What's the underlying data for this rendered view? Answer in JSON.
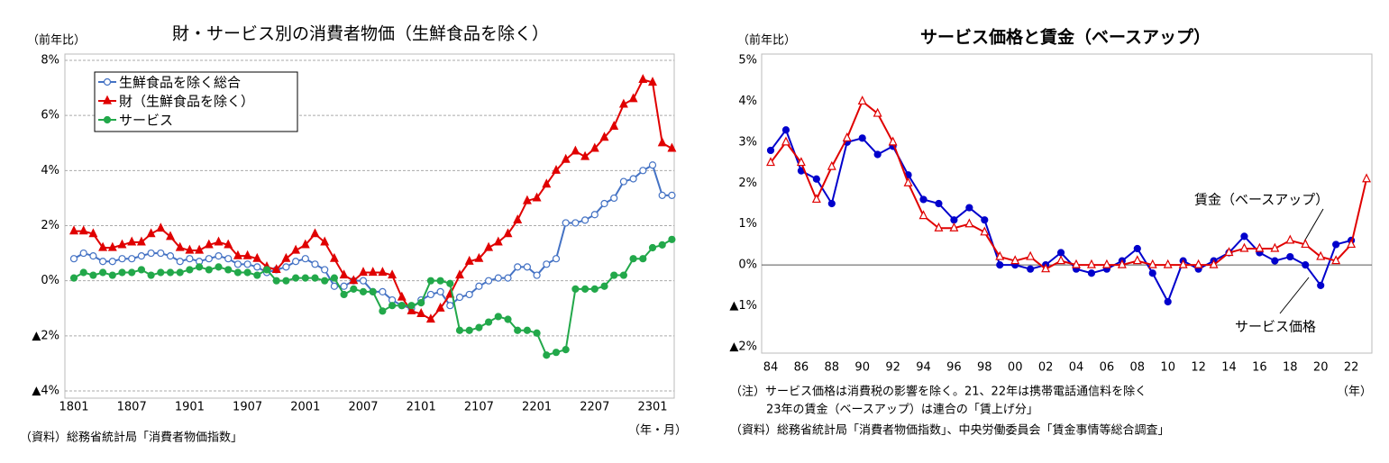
{
  "chart_data": [
    {
      "type": "line",
      "title": "財・サービス別の消費者物価（生鮮食品を除く）",
      "y_unit_label": "（前年比）",
      "x_unit_label": "（年・月）",
      "source": "（資料）総務省統計局「消費者物価指数」",
      "categories": [
        "1801",
        null,
        null,
        null,
        null,
        null,
        "1807",
        null,
        null,
        null,
        null,
        null,
        "1901",
        null,
        null,
        null,
        null,
        null,
        "1907",
        null,
        null,
        null,
        null,
        null,
        "2001",
        null,
        null,
        null,
        null,
        null,
        "2007",
        null,
        null,
        null,
        null,
        null,
        "2101",
        null,
        null,
        null,
        null,
        null,
        "2107",
        null,
        null,
        null,
        null,
        null,
        "2201",
        null,
        null,
        null,
        null,
        null,
        "2207",
        null,
        null,
        null,
        null,
        null,
        "2301",
        null,
        null
      ],
      "series": [
        {
          "name": "生鮮食品を除く総合",
          "color": "#4472c4",
          "marker": "circle-open",
          "values": [
            0.8,
            1.0,
            0.9,
            0.7,
            0.7,
            0.8,
            0.8,
            0.9,
            1.0,
            1.0,
            0.9,
            0.7,
            0.8,
            0.7,
            0.8,
            0.9,
            0.8,
            0.6,
            0.6,
            0.5,
            0.3,
            0.4,
            0.5,
            0.7,
            0.8,
            0.6,
            0.4,
            -0.2,
            -0.2,
            0.0,
            0.0,
            -0.4,
            -0.4,
            -0.7,
            -0.9,
            -1.0,
            -0.7,
            -0.5,
            -0.4,
            -0.9,
            -0.6,
            -0.5,
            -0.2,
            0.0,
            0.1,
            0.1,
            0.5,
            0.5,
            0.2,
            0.6,
            0.8,
            2.1,
            2.1,
            2.2,
            2.4,
            2.8,
            3.0,
            3.6,
            3.7,
            4.0,
            4.2,
            3.1,
            3.1
          ]
        },
        {
          "name": "財（生鮮食品を除く）",
          "color": "#e00000",
          "marker": "triangle",
          "values": [
            1.8,
            1.8,
            1.7,
            1.2,
            1.2,
            1.3,
            1.4,
            1.4,
            1.7,
            1.9,
            1.6,
            1.2,
            1.1,
            1.1,
            1.3,
            1.4,
            1.3,
            0.9,
            0.9,
            0.8,
            0.5,
            0.4,
            0.8,
            1.1,
            1.3,
            1.7,
            1.4,
            0.8,
            0.2,
            0.0,
            0.3,
            0.3,
            0.3,
            0.2,
            -0.6,
            -1.1,
            -1.2,
            -1.4,
            -1.0,
            -0.5,
            0.2,
            0.7,
            0.8,
            1.2,
            1.4,
            1.7,
            2.2,
            2.9,
            3.0,
            3.5,
            4.0,
            4.4,
            4.7,
            4.5,
            4.8,
            5.2,
            5.6,
            6.4,
            6.6,
            7.3,
            7.2,
            5.0,
            4.8
          ]
        },
        {
          "name": "サービス",
          "color": "#22a84a",
          "marker": "circle",
          "values": [
            0.1,
            0.3,
            0.2,
            0.3,
            0.2,
            0.3,
            0.3,
            0.4,
            0.2,
            0.3,
            0.3,
            0.3,
            0.4,
            0.5,
            0.4,
            0.5,
            0.4,
            0.3,
            0.3,
            0.2,
            0.4,
            0.0,
            0.0,
            0.1,
            0.1,
            0.1,
            0.0,
            0.1,
            -0.5,
            -0.3,
            -0.4,
            -0.4,
            -1.1,
            -0.9,
            -0.9,
            -0.9,
            -0.8,
            0.0,
            0.0,
            -0.1,
            -1.8,
            -1.8,
            -1.7,
            -1.5,
            -1.3,
            -1.4,
            -1.8,
            -1.8,
            -1.9,
            -2.7,
            -2.6,
            -2.5,
            -0.3,
            -0.3,
            -0.3,
            -0.2,
            0.2,
            0.2,
            0.8,
            0.8,
            1.2,
            1.3,
            1.5
          ]
        }
      ],
      "ylim": [
        -4,
        8
      ],
      "yticks": [
        {
          "value": -4,
          "label": "▲4%"
        },
        {
          "value": -2,
          "label": "▲2%"
        },
        {
          "value": 0,
          "label": "0%"
        },
        {
          "value": 2,
          "label": "2%"
        },
        {
          "value": 4,
          "label": "4%"
        },
        {
          "value": 6,
          "label": "6%"
        },
        {
          "value": 8,
          "label": "8%"
        }
      ],
      "grid": true,
      "legend": "upper left"
    },
    {
      "type": "line",
      "title": "サービス価格と賃金（ベースアップ）",
      "y_unit_label": "（前年比）",
      "x_unit_label": "（年）",
      "notes": [
        "（注）サービス価格は消費税の影響を除く。21、22年は携帯電話通信料を除く",
        "23年の賃金（ベースアップ）は連合の「賃上げ分」"
      ],
      "source": "（資料）総務省統計局「消費者物価指数」、中央労働委員会「賃金事情等総合調査」",
      "categories": [
        "84",
        null,
        "86",
        null,
        "88",
        null,
        "90",
        null,
        "92",
        null,
        "94",
        null,
        "96",
        null,
        "98",
        null,
        "00",
        null,
        "02",
        null,
        "04",
        null,
        "06",
        null,
        "08",
        null,
        "10",
        null,
        "12",
        null,
        "14",
        null,
        "16",
        null,
        "18",
        null,
        "20",
        null,
        "22",
        null
      ],
      "series": [
        {
          "name": "サービス価格",
          "color": "#0000cc",
          "marker": "circle",
          "values": [
            2.8,
            3.3,
            2.3,
            2.1,
            1.5,
            3.0,
            3.1,
            2.7,
            2.9,
            2.2,
            1.6,
            1.5,
            1.1,
            1.4,
            1.1,
            0.0,
            0.0,
            -0.1,
            0.0,
            0.3,
            -0.1,
            -0.2,
            -0.1,
            0.1,
            0.4,
            -0.2,
            -0.9,
            0.1,
            -0.1,
            0.1,
            0.3,
            0.7,
            0.3,
            0.1,
            0.2,
            0.0,
            -0.5,
            0.5,
            0.6,
            null
          ]
        },
        {
          "name": "賃金（ベースアップ）",
          "color": "#e00000",
          "marker": "triangle-open",
          "values": [
            2.5,
            3.0,
            2.5,
            1.6,
            2.4,
            3.1,
            4.0,
            3.7,
            3.0,
            2.0,
            1.2,
            0.9,
            0.9,
            1.0,
            0.8,
            0.2,
            0.1,
            0.2,
            -0.1,
            0.1,
            0.0,
            0.0,
            0.0,
            0.0,
            0.1,
            0.0,
            0.0,
            0.0,
            0.0,
            0.0,
            0.3,
            0.4,
            0.4,
            0.4,
            0.6,
            0.5,
            0.2,
            0.1,
            0.5,
            2.1
          ]
        }
      ],
      "ylim": [
        -2,
        5
      ],
      "yticks": [
        {
          "value": -2,
          "label": "▲2%"
        },
        {
          "value": -1,
          "label": "▲1%"
        },
        {
          "value": 0,
          "label": "0%"
        },
        {
          "value": 1,
          "label": "1%"
        },
        {
          "value": 2,
          "label": "2%"
        },
        {
          "value": 3,
          "label": "3%"
        },
        {
          "value": 4,
          "label": "4%"
        },
        {
          "value": 5,
          "label": "5%"
        }
      ],
      "grid": false
    }
  ]
}
